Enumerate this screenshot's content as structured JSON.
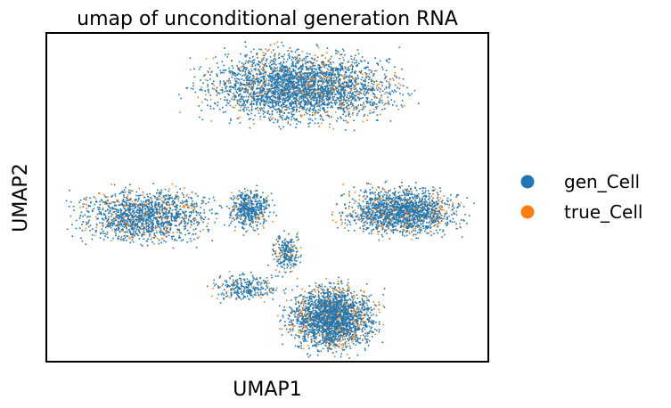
{
  "chart_data": {
    "type": "scatter",
    "title": "umap of unconditional generation RNA",
    "xlabel": "UMAP1",
    "ylabel": "UMAP2",
    "xlim": [
      -7.2,
      17.2
    ],
    "ylim": [
      -9.2,
      14.6
    ],
    "grid": false,
    "ticks": false,
    "legend_position": "right",
    "series": [
      {
        "name": "gen_Cell",
        "color": "#1f77b4"
      },
      {
        "name": "true_Cell",
        "color": "#ff7f0e"
      }
    ],
    "clusters": [
      {
        "region": "top",
        "x": [
          0.0,
          13.5
        ],
        "y": [
          7.5,
          14.0
        ],
        "points": 3200,
        "gen_fraction": 0.78
      },
      {
        "region": "left",
        "x": [
          -6.3,
          2.8
        ],
        "y": [
          -1.0,
          3.8
        ],
        "points": 1500,
        "gen_fraction": 0.78
      },
      {
        "region": "center-arm",
        "x": [
          2.5,
          5.5
        ],
        "y": [
          0.0,
          3.8
        ],
        "points": 500,
        "gen_fraction": 0.8
      },
      {
        "region": "right",
        "x": [
          8.5,
          16.4
        ],
        "y": [
          -0.5,
          4.0
        ],
        "points": 1700,
        "gen_fraction": 0.77
      },
      {
        "region": "bottom",
        "x": [
          5.5,
          11.5
        ],
        "y": [
          -8.9,
          -3.0
        ],
        "points": 2400,
        "gen_fraction": 0.72
      },
      {
        "region": "bottom-tail",
        "x": [
          1.5,
          6.0
        ],
        "y": [
          -5.0,
          -2.5
        ],
        "points": 300,
        "gen_fraction": 0.82
      },
      {
        "region": "center-stalk",
        "x": [
          5.0,
          7.0
        ],
        "y": [
          -3.0,
          0.5
        ],
        "points": 250,
        "gen_fraction": 0.8
      }
    ]
  }
}
